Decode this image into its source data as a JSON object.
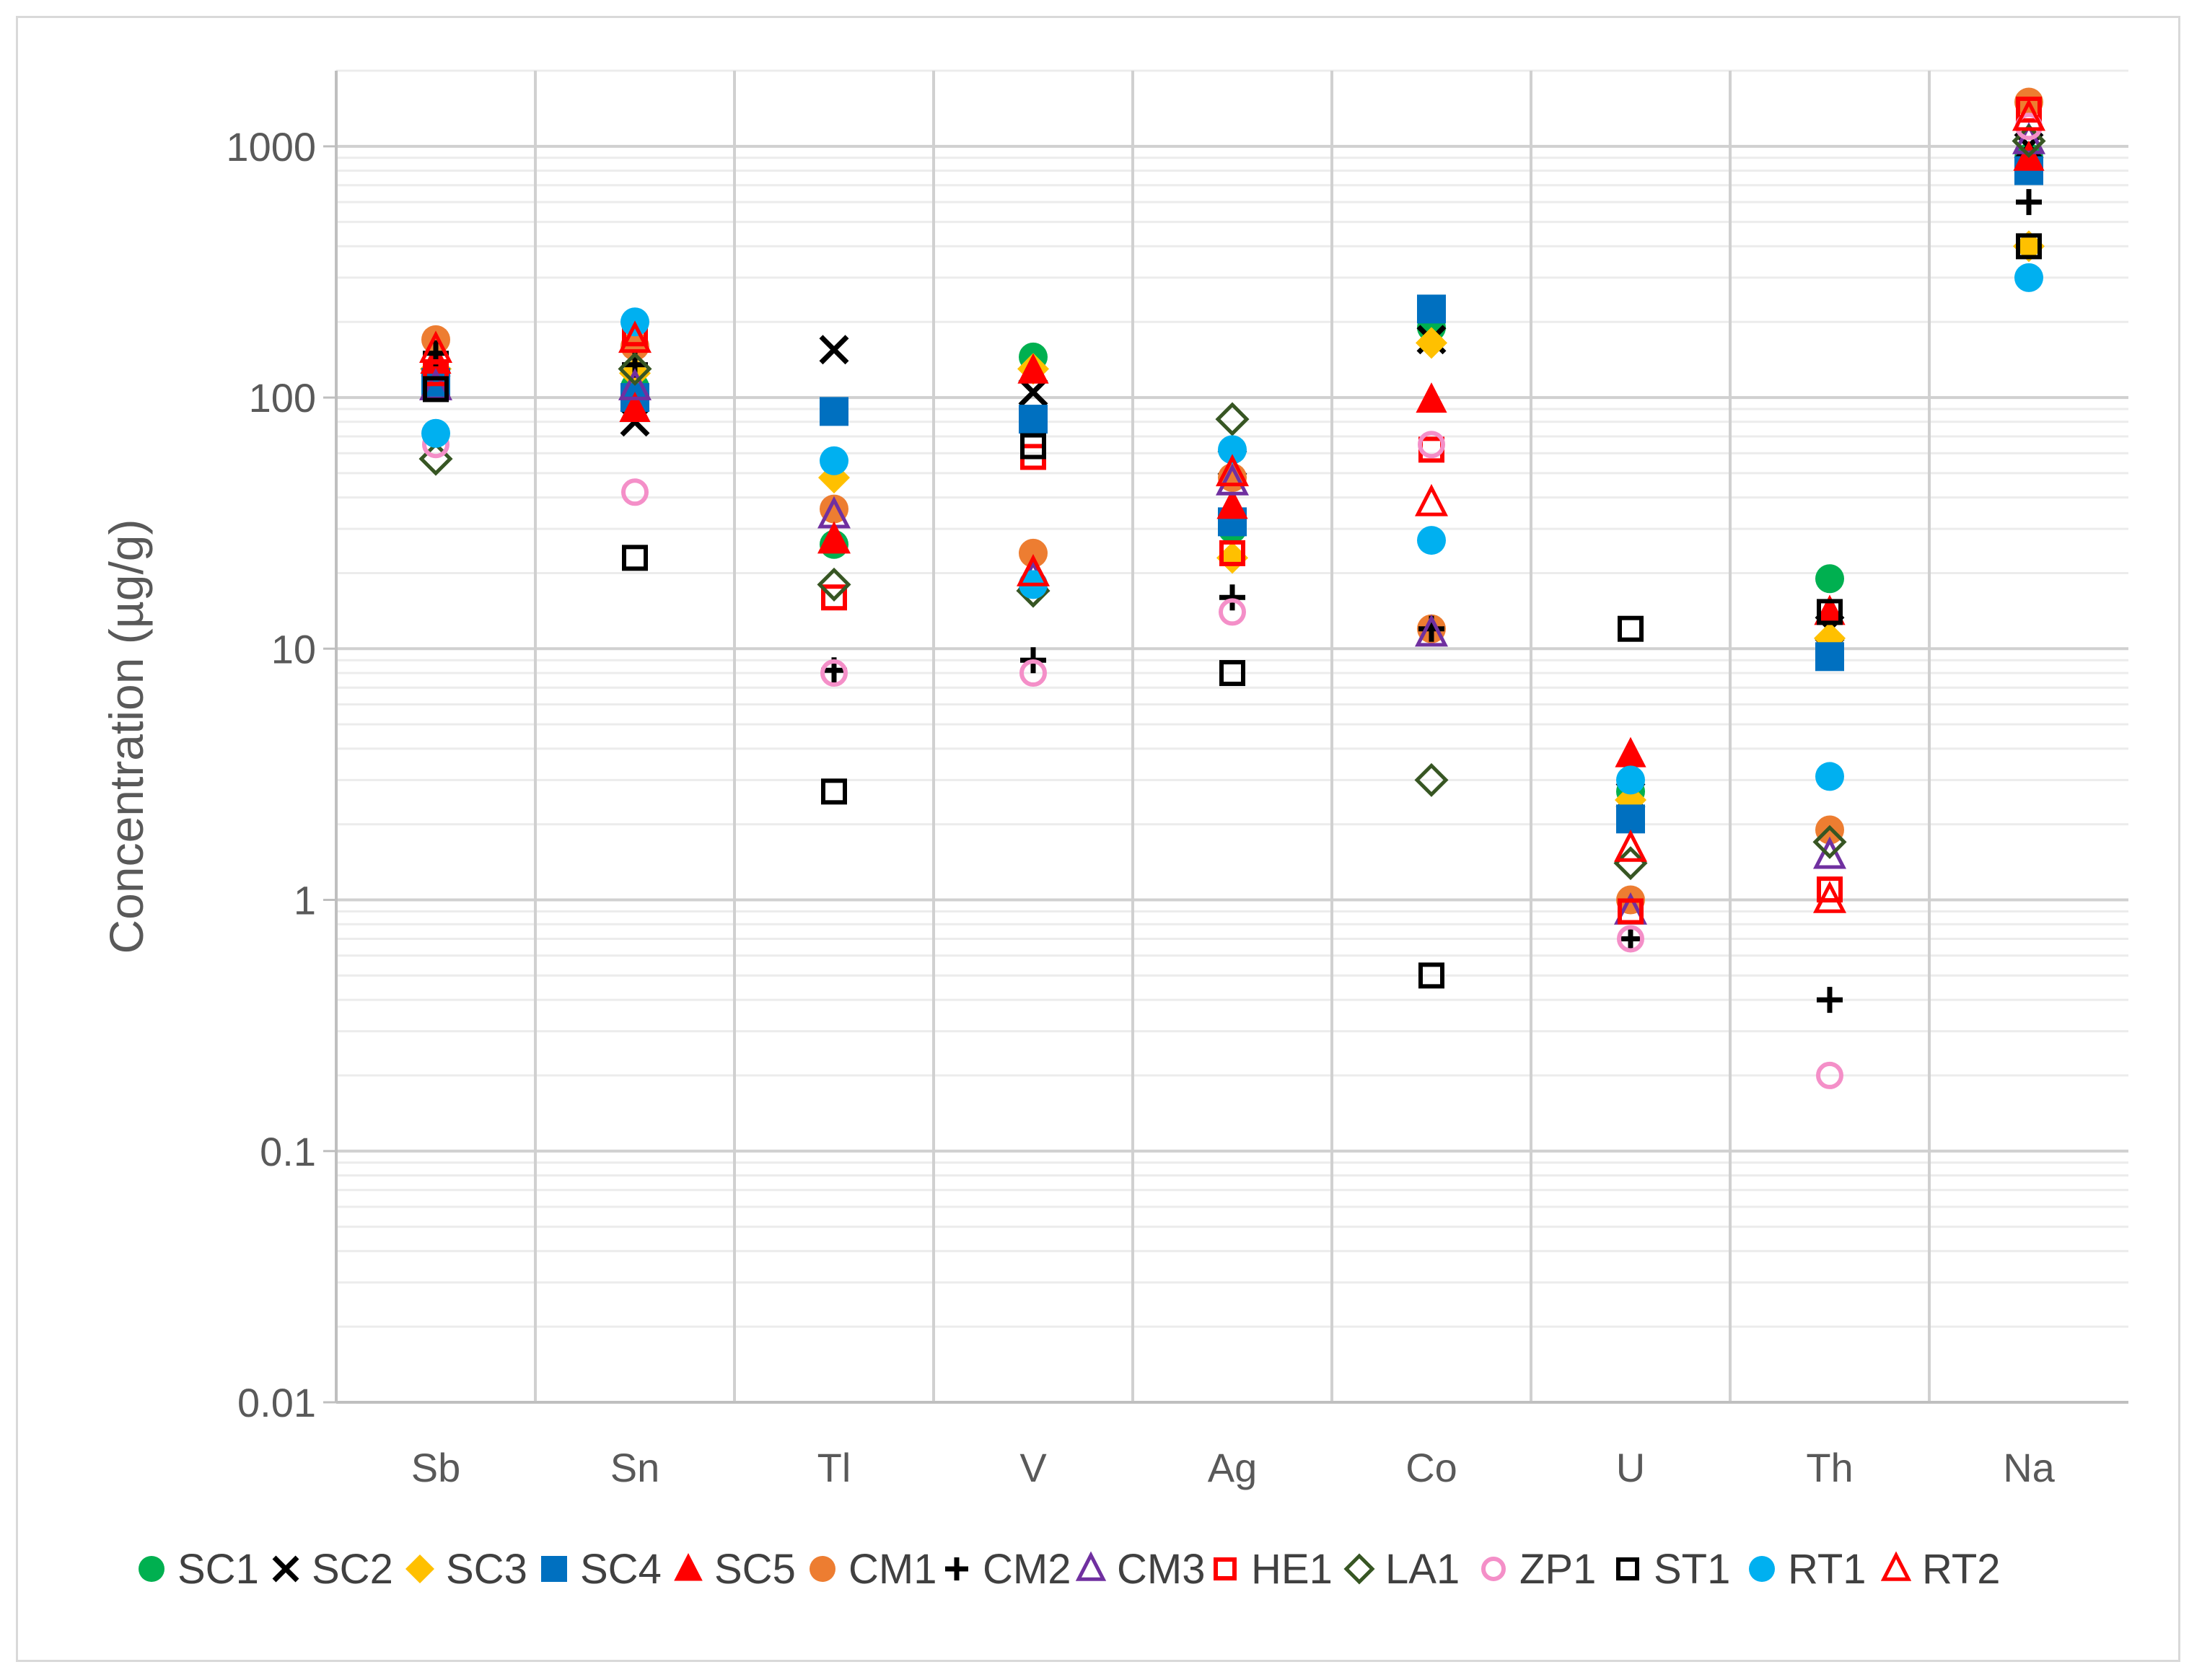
{
  "chart_data": {
    "type": "scatter",
    "title": "",
    "xlabel": "",
    "ylabel": "Concentration (µg/g)",
    "yscale": "log",
    "ylim": [
      0.01,
      2000
    ],
    "grid": true,
    "legend_position": "bottom",
    "categories": [
      "Sb",
      "Sn",
      "Tl",
      "V",
      "Ag",
      "Co",
      "U",
      "Th",
      "Na"
    ],
    "y_ticks": [
      {
        "value": 0.01,
        "label": "0.01"
      },
      {
        "value": 0.1,
        "label": "0.1"
      },
      {
        "value": 1,
        "label": "1"
      },
      {
        "value": 10,
        "label": "10"
      },
      {
        "value": 100,
        "label": "100"
      },
      {
        "value": 1000,
        "label": "1000"
      }
    ],
    "series": [
      {
        "name": "SC1",
        "marker": "circle",
        "fill": true,
        "color": "#00b050",
        "values": [
          120,
          110,
          26,
          145,
          30,
          190,
          2.7,
          19,
          900
        ]
      },
      {
        "name": "SC2",
        "marker": "x",
        "fill": false,
        "color": "#000000",
        "values": [
          110,
          80,
          155,
          105,
          55,
          170,
          2.6,
          12,
          1000
        ]
      },
      {
        "name": "SC3",
        "marker": "diamond",
        "fill": true,
        "color": "#ffc000",
        "values": [
          130,
          125,
          48,
          130,
          23,
          165,
          2.5,
          11,
          400
        ]
      },
      {
        "name": "SC4",
        "marker": "square",
        "fill": true,
        "color": "#0070c0",
        "values": [
          115,
          100,
          88,
          82,
          32,
          225,
          2.1,
          9.3,
          800
        ]
      },
      {
        "name": "SC5",
        "marker": "triangle",
        "fill": true,
        "color": "#ff0000",
        "values": [
          140,
          90,
          27,
          128,
          37,
          98,
          3.8,
          14,
          900
        ]
      },
      {
        "name": "CM1",
        "marker": "circle",
        "fill": true,
        "color": "#ed7d31",
        "values": [
          170,
          160,
          36,
          24,
          48,
          12,
          1.0,
          1.9,
          1500
        ]
      },
      {
        "name": "CM2",
        "marker": "plus",
        "fill": false,
        "color": "#000000",
        "values": [
          150,
          135,
          8.2,
          9,
          16,
          12,
          0.7,
          0.4,
          600
        ]
      },
      {
        "name": "CM3",
        "marker": "triangle",
        "fill": false,
        "color": "#7030a0",
        "values": [
          110,
          110,
          34,
          19,
          46,
          11.5,
          0.9,
          1.5,
          1050
        ]
      },
      {
        "name": "HE1",
        "marker": "square",
        "fill": false,
        "color": "#ff0000",
        "values": [
          125,
          180,
          16,
          58,
          24,
          62,
          0.9,
          1.1,
          1400
        ]
      },
      {
        "name": "LA1",
        "marker": "diamond",
        "fill": false,
        "color": "#375623",
        "values": [
          57,
          130,
          18,
          17,
          82,
          3.0,
          1.4,
          1.7,
          1050
        ]
      },
      {
        "name": "ZP1",
        "marker": "circle",
        "fill": false,
        "color": "#f48fc8",
        "values": [
          65,
          42,
          8,
          8,
          14,
          65,
          0.7,
          0.2,
          1200
        ]
      },
      {
        "name": "ST1",
        "marker": "square",
        "fill": false,
        "color": "#000000",
        "values": [
          108,
          23,
          2.7,
          64,
          8,
          0.5,
          12,
          14,
          400
        ]
      },
      {
        "name": "RT1",
        "marker": "circle",
        "fill": true,
        "color": "#00b0f0",
        "values": [
          72,
          200,
          56,
          18,
          62,
          27,
          3.0,
          3.1,
          300
        ]
      },
      {
        "name": "RT2",
        "marker": "triangle",
        "fill": false,
        "color": "#ff0000",
        "values": [
          155,
          170,
          27,
          20,
          50,
          38,
          1.6,
          1.0,
          1300
        ]
      }
    ]
  }
}
